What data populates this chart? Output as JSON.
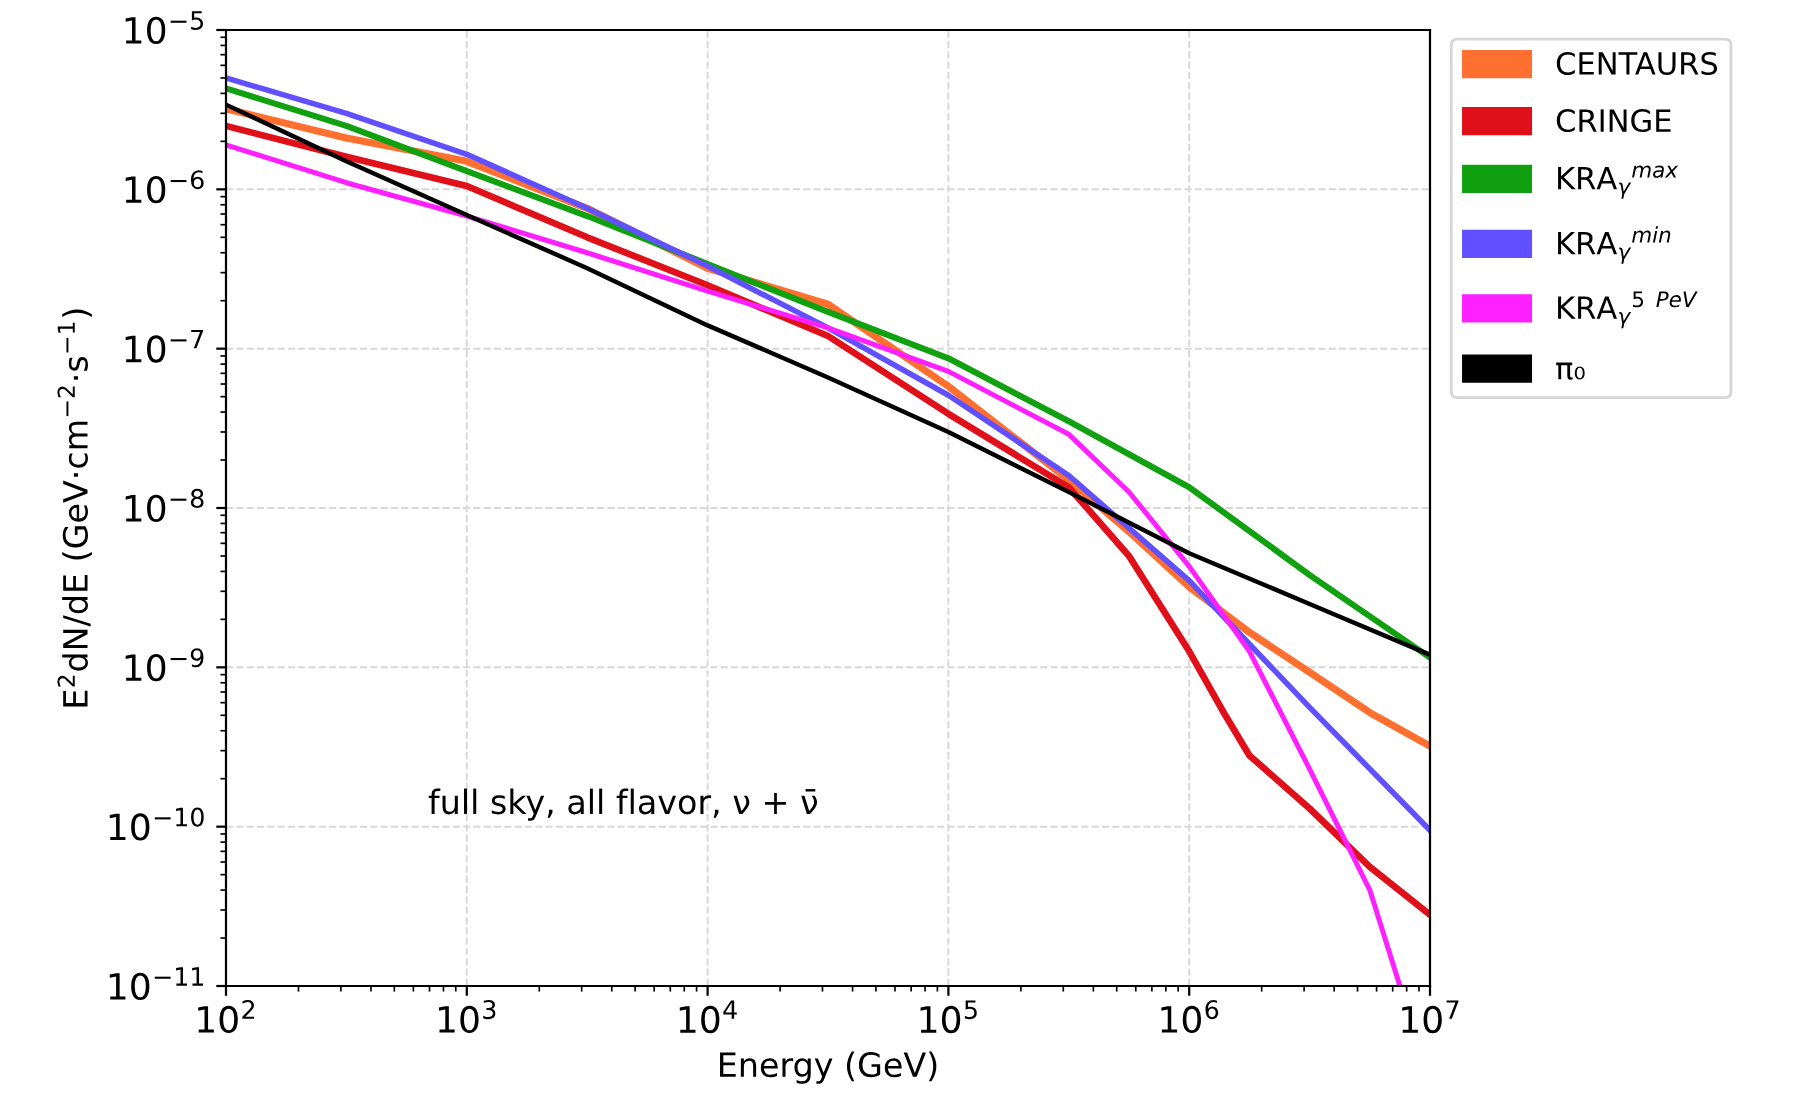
{
  "chart_data": {
    "type": "line",
    "xlabel": "Energy (GeV)",
    "ylabel": "E$^{2}$dN/dE (GeV·cm$^{−2}$·s$^{−1}$)",
    "log": "xy",
    "grid": true,
    "legend": "top right",
    "line_style": "solid",
    "marker": "none",
    "xlim": [
      100,
      10000000
    ],
    "ylim": [
      1e-11,
      1e-05
    ],
    "xticks": [
      {
        "value": 100,
        "label": "10$^{2}$"
      },
      {
        "value": 1000,
        "label": "10$^{3}$"
      },
      {
        "value": 10000,
        "label": "10$^{4}$"
      },
      {
        "value": 100000,
        "label": "10$^{5}$"
      },
      {
        "value": 1000000,
        "label": "10$^{6}$"
      },
      {
        "value": 10000000,
        "label": "10$^{7}$"
      }
    ],
    "yticks": [
      {
        "value": 1e-11,
        "label": "10$^{−11}$"
      },
      {
        "value": 1e-10,
        "label": "10$^{−10}$"
      },
      {
        "value": 1e-09,
        "label": "10$^{−9}$"
      },
      {
        "value": 1e-08,
        "label": "10$^{−8}$"
      },
      {
        "value": 1e-07,
        "label": "10$^{−7}$"
      },
      {
        "value": 1e-06,
        "label": "10$^{−6}$"
      },
      {
        "value": 1e-05,
        "label": "10$^{−5}$"
      }
    ],
    "annotations": [
      "full sky, all flavor, ν + ν̄"
    ],
    "series": [
      {
        "name": "CENTAURS",
        "color": "#ff7030",
        "x": [
          100,
          316,
          1000,
          3162,
          10000,
          31623,
          100000,
          316228,
          562341,
          1000000,
          1778279,
          3162278,
          5623413,
          10000000
        ],
        "values": [
          3.2e-06,
          2.1e-06,
          1.5e-06,
          7.6e-07,
          3.2e-07,
          1.9e-07,
          5.8e-08,
          1.5e-08,
          7.1e-09,
          3.2e-09,
          1.66e-09,
          9.3e-10,
          5.2e-10,
          3.2e-10
        ]
      },
      {
        "name": "CRINGE",
        "color": "#e0101a",
        "x": [
          100,
          316,
          1000,
          3162,
          10000,
          31623,
          100000,
          316228,
          562341,
          1000000,
          1412538,
          1778279,
          3162278,
          5623413,
          10000000
        ],
        "values": [
          2.5e-06,
          1.6e-06,
          1.05e-06,
          5e-07,
          2.5e-07,
          1.2e-07,
          3.9e-08,
          1.35e-08,
          5e-09,
          1.26e-09,
          5e-10,
          2.8e-10,
          1.3e-10,
          5.6e-11,
          2.8e-11
        ]
      },
      {
        "name": "KRA$_{γ}$$^{max}$",
        "color": "#10a010",
        "x": [
          100,
          316,
          1000,
          3162,
          10000,
          31623,
          100000,
          316228,
          1000000,
          3162278,
          10000000
        ],
        "values": [
          4.3e-06,
          2.5e-06,
          1.3e-06,
          6.8e-07,
          3.4e-07,
          1.7e-07,
          8.7e-08,
          3.5e-08,
          1.35e-08,
          3.8e-09,
          1.15e-09
        ]
      },
      {
        "name": "KRA$_{γ}$$^{min}$",
        "color": "#6050ff",
        "x": [
          100,
          316,
          1000,
          3162,
          10000,
          31623,
          100000,
          316228,
          1000000,
          3162278,
          10000000
        ],
        "values": [
          5e-06,
          3e-06,
          1.66e-06,
          7.6e-07,
          3.3e-07,
          1.35e-07,
          5.1e-08,
          1.6e-08,
          3.5e-09,
          5.6e-10,
          9.5e-11
        ]
      },
      {
        "name": "KRA$_{γ}$$^{5}$ $^{PeV}$",
        "color": "#ff20ff",
        "x": [
          100,
          316,
          1000,
          3162,
          10000,
          31623,
          100000,
          316228,
          562341,
          1000000,
          1778279,
          3162278,
          5623413,
          7500000
        ],
        "values": [
          1.9e-06,
          1.1e-06,
          6.8e-07,
          4e-07,
          2.3e-07,
          1.35e-07,
          7.2e-08,
          2.9e-08,
          1.26e-08,
          4.3e-09,
          1.26e-09,
          2.3e-10,
          4e-11,
          1e-11
        ]
      },
      {
        "name": "π₀",
        "color": "#000000",
        "x": [
          100,
          316,
          1000,
          3162,
          10000,
          31623,
          100000,
          316228,
          1000000,
          3162278,
          10000000
        ],
        "values": [
          3.4e-06,
          1.5e-06,
          6.9e-07,
          3.2e-07,
          1.4e-07,
          6.6e-08,
          3e-08,
          1.26e-08,
          5.2e-09,
          2.5e-09,
          1.2e-09
        ]
      }
    ]
  }
}
